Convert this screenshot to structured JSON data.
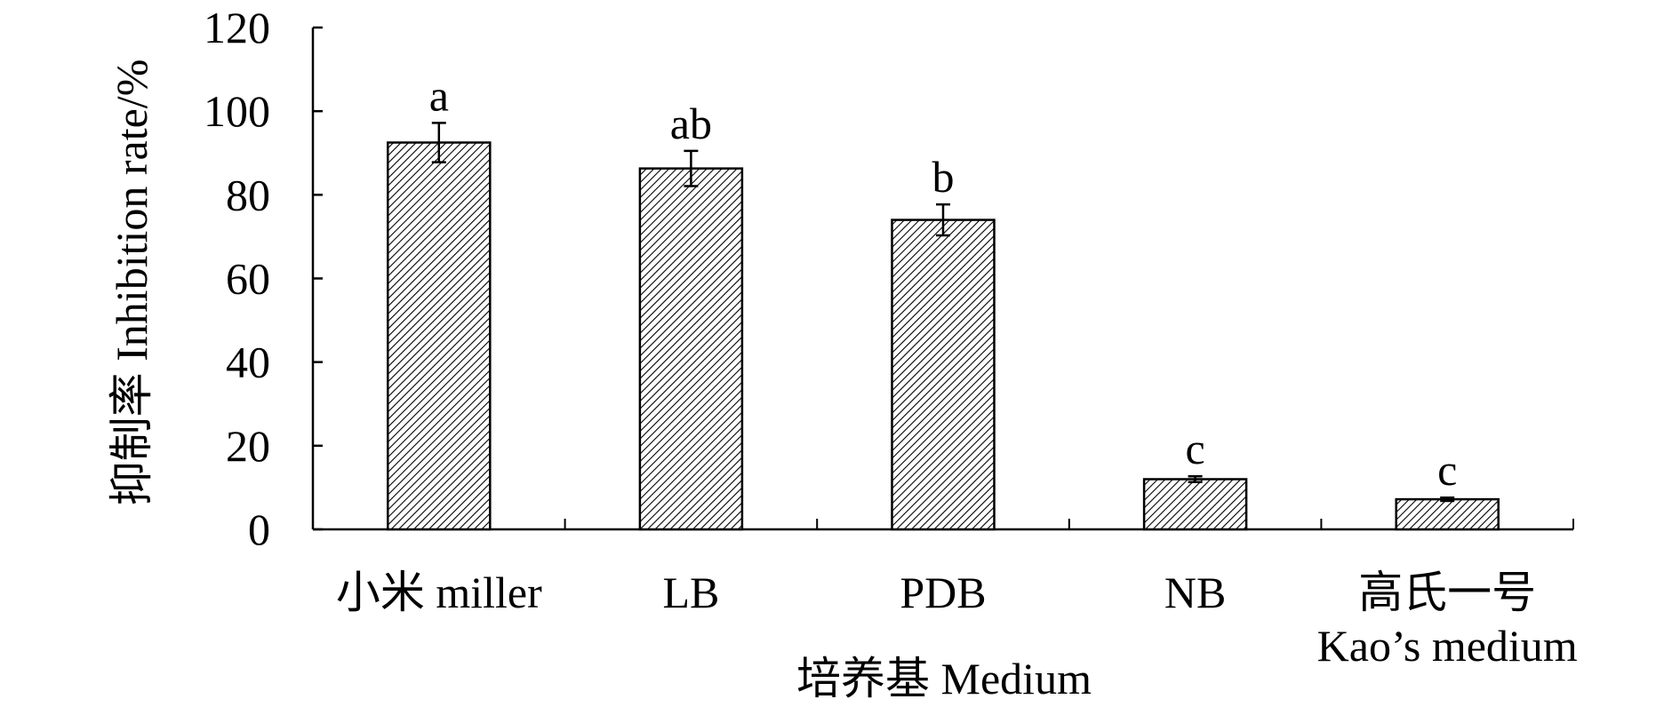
{
  "chart_data": {
    "type": "bar",
    "title": "",
    "xlabel": "培养基 Medium",
    "ylabel": "抑制率 Inhibition rate/%",
    "ylim": [
      0,
      120
    ],
    "yticks": [
      "0",
      "20",
      "40",
      "60",
      "80",
      "100",
      "120"
    ],
    "categories": [
      {
        "line1": "小米 miller",
        "line2": ""
      },
      {
        "line1": "LB",
        "line2": ""
      },
      {
        "line1": "PDB",
        "line2": ""
      },
      {
        "line1": "NB",
        "line2": ""
      },
      {
        "line1": "高氏一号",
        "line2": "Kao’s medium"
      }
    ],
    "values": [
      92.5,
      86.3,
      74.0,
      12.0,
      7.2
    ],
    "errors": [
      4.7,
      4.2,
      3.7,
      0.7,
      0.4
    ],
    "significance": [
      "a",
      "ab",
      "b",
      "c",
      "c"
    ],
    "grid": false,
    "legend": "none",
    "bar_fill": "diagonal hatch",
    "colors": {
      "bar_edge": "#000000",
      "hatch": "#000000",
      "background": "#ffffff"
    }
  }
}
